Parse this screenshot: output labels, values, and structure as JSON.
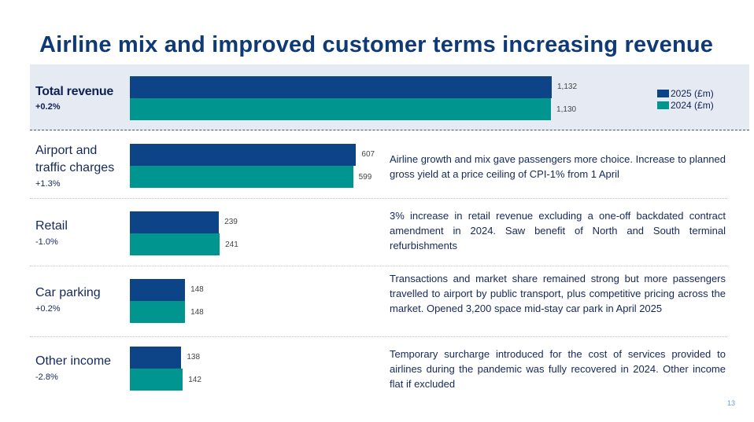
{
  "slide": {
    "title": "Airline mix and improved customer terms increasing revenue",
    "page_number": "13"
  },
  "colors": {
    "series_2025": "#0d4488",
    "series_2024": "#00968f",
    "title": "#0f3a78",
    "panel_bg": "#e6ebf3"
  },
  "legend": [
    {
      "label": "2025 (£m)",
      "color": "#0d4488"
    },
    {
      "label": "2024 (£m)",
      "color": "#00968f"
    }
  ],
  "rows": [
    {
      "name": "Total revenue",
      "change": "+0.2%",
      "v2025": 1132,
      "v2024": 1130,
      "label2025": "1,132",
      "label2024": "1,130",
      "description": ""
    },
    {
      "name": "Airport and traffic charges",
      "name_line1": "Airport and",
      "name_line2": "traffic charges",
      "change": "+1.3%",
      "v2025": 607,
      "v2024": 599,
      "label2025": "607",
      "label2024": "599",
      "description": "Airline growth and mix gave passengers more choice. Increase to planned gross yield at a price ceiling of CPI-1% from 1 April"
    },
    {
      "name": "Retail",
      "change": "-1.0%",
      "v2025": 239,
      "v2024": 241,
      "label2025": "239",
      "label2024": "241",
      "description": "3% increase in retail revenue excluding a one-off backdated contract amendment in 2024. Saw benefit of North and South terminal refurbishments"
    },
    {
      "name": "Car parking",
      "change": "+0.2%",
      "v2025": 148,
      "v2024": 148,
      "label2025": "148",
      "label2024": "148",
      "description": "Transactions and market share remained strong but more passengers travelled to airport by public transport, plus competitive pricing across the market. Opened 3,200 space mid-stay car park in April 2025"
    },
    {
      "name": "Other income",
      "change": "-2.8%",
      "v2025": 138,
      "v2024": 142,
      "label2025": "138",
      "label2024": "142",
      "description": "Temporary surcharge introduced for the cost of services provided to airlines during the pandemic was fully recovered in 2024. Other income flat if excluded"
    }
  ],
  "chart_data": {
    "type": "bar",
    "orientation": "horizontal",
    "title": "Airline mix and improved customer terms increasing revenue",
    "categories": [
      "Total revenue",
      "Airport and traffic charges",
      "Retail",
      "Car parking",
      "Other income"
    ],
    "series": [
      {
        "name": "2025 (£m)",
        "values": [
          1132,
          607,
          239,
          148,
          138
        ]
      },
      {
        "name": "2024 (£m)",
        "values": [
          1130,
          599,
          241,
          148,
          142
        ]
      }
    ],
    "changes": [
      "+0.2%",
      "+1.3%",
      "-1.0%",
      "+0.2%",
      "-2.8%"
    ],
    "xlabel": "",
    "ylabel": "",
    "xlim": [
      0,
      1132
    ],
    "grid": false,
    "legend": "top-right",
    "data_labels": true
  }
}
